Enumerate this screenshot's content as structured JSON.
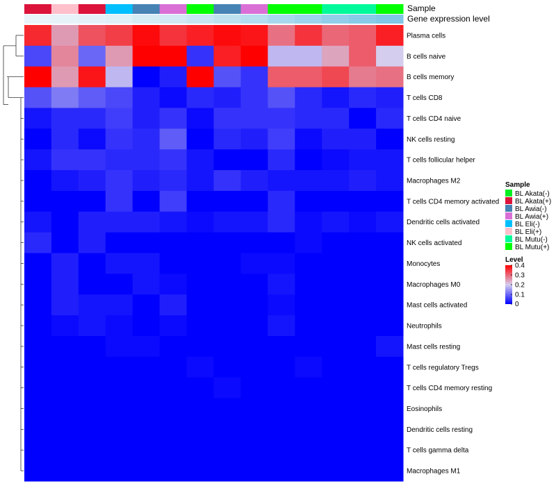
{
  "chart_data": {
    "type": "heatmap",
    "annotation_labels": {
      "sample": "Sample",
      "gene": "Gene expression level"
    },
    "rows": [
      "Plasma cells",
      "B cells naive",
      "B cells memory",
      "T cells CD8",
      "T cells CD4 naive",
      "NK cells resting",
      "T cells follicular helper",
      "Macrophages M2",
      "T cells CD4 memory activated",
      "Dendritic cells activated",
      "NK cells activated",
      "Monocytes",
      "Macrophages M0",
      "Mast cells activated",
      "Neutrophils",
      "Mast cells resting",
      "T cells regulatory  Tregs",
      "T cells CD4 memory resting",
      "Eosinophils",
      "Dendritic cells resting",
      "T cells gamma delta",
      "Macrophages M1"
    ],
    "column_samples": [
      "BL Akata(+)",
      "BL Eli(+)",
      "BL Akata(+)",
      "BL Eli(-)",
      "BL Awia(-)",
      "BL Awia(+)",
      "BL Mutu(+)",
      "BL Awia(-)",
      "BL Awia(+)",
      "BL Mutu(+)",
      "BL Mutu(+)",
      "BL Mutu(-)",
      "BL Mutu(-)",
      "BL Mutu(+)"
    ],
    "values": [
      [
        0.36,
        0.25,
        0.32,
        0.34,
        0.39,
        0.35,
        0.37,
        0.39,
        0.38,
        0.29,
        0.35,
        0.3,
        0.31,
        0.37
      ],
      [
        0.07,
        0.27,
        0.1,
        0.25,
        0.4,
        0.4,
        0.05,
        0.37,
        0.4,
        0.18,
        0.18,
        0.24,
        0.31,
        0.2
      ],
      [
        0.4,
        0.25,
        0.38,
        0.18,
        0.0,
        0.03,
        0.4,
        0.08,
        0.05,
        0.31,
        0.31,
        0.33,
        0.28,
        0.29
      ],
      [
        0.08,
        0.12,
        0.09,
        0.07,
        0.03,
        0.01,
        0.04,
        0.03,
        0.05,
        0.08,
        0.04,
        0.02,
        0.04,
        0.03
      ],
      [
        0.02,
        0.04,
        0.04,
        0.06,
        0.03,
        0.05,
        0.01,
        0.05,
        0.05,
        0.05,
        0.04,
        0.04,
        0.0,
        0.04
      ],
      [
        0.0,
        0.04,
        0.01,
        0.05,
        0.04,
        0.09,
        0.0,
        0.04,
        0.03,
        0.06,
        0.01,
        0.03,
        0.03,
        0.0
      ],
      [
        0.02,
        0.05,
        0.05,
        0.04,
        0.04,
        0.05,
        0.02,
        0.0,
        0.0,
        0.04,
        0.0,
        0.01,
        0.02,
        0.02
      ],
      [
        0.0,
        0.02,
        0.03,
        0.05,
        0.03,
        0.04,
        0.02,
        0.05,
        0.03,
        0.02,
        0.02,
        0.02,
        0.03,
        0.02
      ],
      [
        0.0,
        0.0,
        0.0,
        0.05,
        0.0,
        0.06,
        0.0,
        0.0,
        0.0,
        0.04,
        0.0,
        0.0,
        0.0,
        0.0
      ],
      [
        0.02,
        0.0,
        0.03,
        0.03,
        0.03,
        0.02,
        0.01,
        0.02,
        0.02,
        0.04,
        0.01,
        0.02,
        0.01,
        0.02
      ],
      [
        0.04,
        0.0,
        0.03,
        0.0,
        0.0,
        0.0,
        0.0,
        0.0,
        0.0,
        0.0,
        0.01,
        0.0,
        0.0,
        0.0
      ],
      [
        0.0,
        0.03,
        0.0,
        0.02,
        0.02,
        0.0,
        0.0,
        0.0,
        0.01,
        0.01,
        0.0,
        0.0,
        0.0,
        0.0
      ],
      [
        0.0,
        0.03,
        0.0,
        0.0,
        0.02,
        0.01,
        0.0,
        0.0,
        0.0,
        0.02,
        0.0,
        0.0,
        0.0,
        0.0
      ],
      [
        0.0,
        0.03,
        0.02,
        0.02,
        0.0,
        0.03,
        0.0,
        0.0,
        0.0,
        0.01,
        0.0,
        0.0,
        0.0,
        0.0
      ],
      [
        0.0,
        0.01,
        0.02,
        0.01,
        0.0,
        0.01,
        0.0,
        0.0,
        0.0,
        0.02,
        0.0,
        0.0,
        0.0,
        0.0
      ],
      [
        0.0,
        0.0,
        0.0,
        0.01,
        0.01,
        0.0,
        0.0,
        0.0,
        0.0,
        0.0,
        0.0,
        0.0,
        0.0,
        0.02
      ],
      [
        0.0,
        0.0,
        0.0,
        0.0,
        0.0,
        0.0,
        0.01,
        0.0,
        0.0,
        0.0,
        0.01,
        0.0,
        0.0,
        0.0
      ],
      [
        0.0,
        0.0,
        0.0,
        0.0,
        0.0,
        0.0,
        0.0,
        0.01,
        0.0,
        0.0,
        0.0,
        0.0,
        0.0,
        0.0
      ],
      [
        0.0,
        0.0,
        0.0,
        0.0,
        0.0,
        0.0,
        0.0,
        0.0,
        0.0,
        0.0,
        0.0,
        0.0,
        0.0,
        0.0
      ],
      [
        0.0,
        0.0,
        0.0,
        0.0,
        0.0,
        0.0,
        0.0,
        0.0,
        0.0,
        0.0,
        0.0,
        0.0,
        0.0,
        0.0
      ],
      [
        0.0,
        0.0,
        0.0,
        0.0,
        0.0,
        0.0,
        0.0,
        0.0,
        0.0,
        0.0,
        0.0,
        0.0,
        0.0,
        0.0
      ],
      [
        0.0,
        0.0,
        0.0,
        0.0,
        0.0,
        0.0,
        0.0,
        0.0,
        0.0,
        0.0,
        0.0,
        0.0,
        0.0,
        0.0
      ]
    ],
    "color_scale": {
      "min": 0,
      "max": 0.4,
      "low": "#0000ff",
      "mid": "#d4cdee",
      "high": "#ff0000",
      "mid_value": 0.2
    },
    "sample_legend": {
      "title": "Sample",
      "entries": [
        {
          "label": "BL Akata(-)",
          "color": "#00ee22"
        },
        {
          "label": "BL Akata(+)",
          "color": "#dc143c"
        },
        {
          "label": "BL Awia(-)",
          "color": "#4682b4"
        },
        {
          "label": "BL Awia(+)",
          "color": "#da70d6"
        },
        {
          "label": "BL Eli(-)",
          "color": "#00bfff"
        },
        {
          "label": "BL Eli(+)",
          "color": "#ffc0cb"
        },
        {
          "label": "BL Mutu(-)",
          "color": "#00fa9a"
        },
        {
          "label": "BL Mutu(+)",
          "color": "#00ff00"
        }
      ]
    },
    "level_legend": {
      "title": "Level",
      "ticks": [
        "0.4",
        "0.3",
        "0.2",
        "0.1",
        "0"
      ],
      "tick_values": [
        0.4,
        0.3,
        0.2,
        0.1,
        0
      ]
    },
    "gene_expression_colors": [
      "#e8f4fa",
      "#e6f3f9",
      "#e4f2f8",
      "#e0f0f7",
      "#d6ecf5",
      "#d0e9f4",
      "#c7e5f2",
      "#bee1f0",
      "#b4ddef",
      "#a8d8ed",
      "#9ed3ec",
      "#92cee9",
      "#88cae8",
      "#80c6e6"
    ]
  }
}
